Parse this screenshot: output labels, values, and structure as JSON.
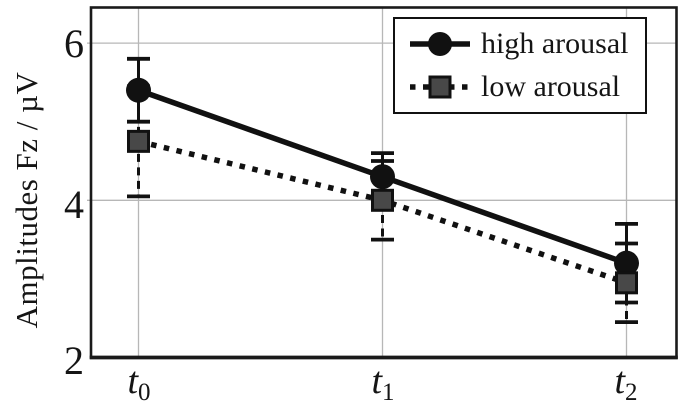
{
  "chart_data": {
    "type": "line",
    "title": "",
    "xlabel": "",
    "ylabel": "Amplitudes Fz / µV",
    "categories": [
      {
        "base": "t",
        "sub": "0"
      },
      {
        "base": "t",
        "sub": "1"
      },
      {
        "base": "t",
        "sub": "2"
      }
    ],
    "series": [
      {
        "name": "high arousal",
        "values": [
          5.4,
          4.3,
          3.2
        ],
        "errors": [
          0.4,
          0.3,
          0.5
        ],
        "line": "solid",
        "marker": "circle",
        "color": "#111111",
        "marker_fill": "#111111"
      },
      {
        "name": "low arousal",
        "values": [
          4.75,
          4.0,
          2.95
        ],
        "errors": [
          0.7,
          0.5,
          0.5
        ],
        "line": "dotted",
        "marker": "square",
        "color": "#111111",
        "marker_fill": "#484848"
      }
    ],
    "yticks": [
      2,
      4,
      6
    ],
    "ylim": [
      2,
      6.45
    ],
    "grid": true,
    "grid_color": "#b7b7b7",
    "axis_color": "#1a1a1a",
    "legend_position": "top-right"
  }
}
